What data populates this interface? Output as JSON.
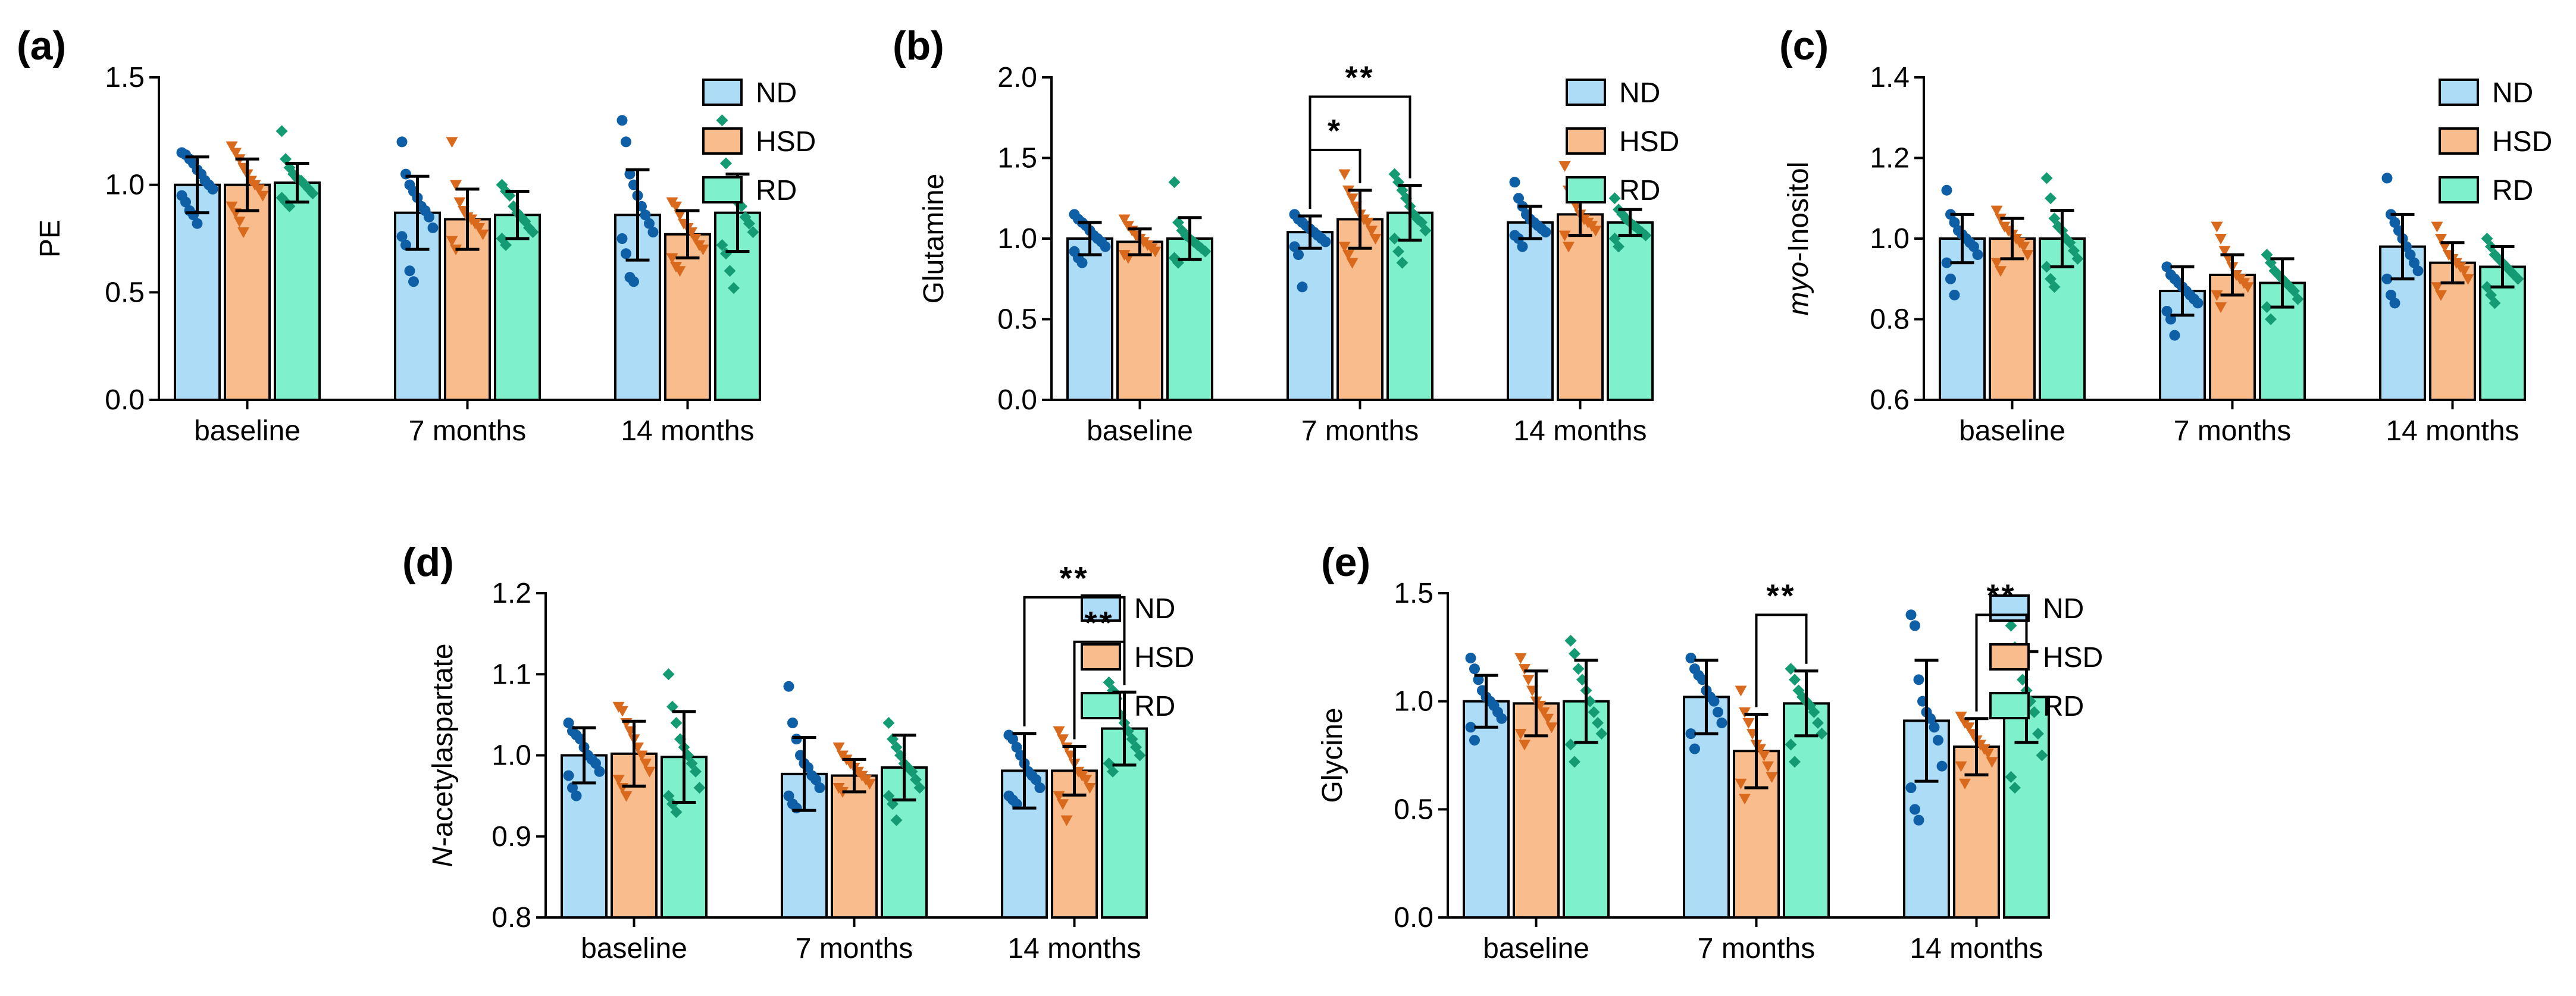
{
  "colors": {
    "ND": {
      "fill": "#ADDCF7",
      "point": "#0E5FA6"
    },
    "HSD": {
      "fill": "#F9BC8D",
      "point": "#D8691D"
    },
    "RD": {
      "fill": "#7FF0CC",
      "point": "#159B74"
    }
  },
  "chart_data": [
    {
      "type": "bar",
      "panel": "(a)",
      "ylabel": "PE",
      "ylabel_prefix": "",
      "ylabel_rest": "",
      "ylim": [
        0,
        1.5
      ],
      "yticks": [
        0.0,
        0.5,
        1.0,
        1.5
      ],
      "ytick_labels": [
        "0.0",
        "0.5",
        "1.0",
        "1.5"
      ],
      "categories": [
        "baseline",
        "7 months",
        "14 months"
      ],
      "series": [
        {
          "name": "ND",
          "marker": "circle",
          "values": [
            1.0,
            0.87,
            0.86
          ],
          "sd": [
            0.13,
            0.17,
            0.21
          ],
          "points": [
            [
              1.15,
              1.14,
              1.12,
              1.1,
              1.07,
              1.05,
              1.02,
              1.0,
              0.98,
              0.95,
              0.92,
              0.88,
              0.86,
              0.82
            ],
            [
              1.2,
              1.05,
              1.0,
              0.97,
              0.94,
              0.9,
              0.88,
              0.85,
              0.8,
              0.76,
              0.72,
              0.6,
              0.55
            ],
            [
              1.3,
              1.2,
              1.05,
              1.0,
              0.95,
              0.9,
              0.86,
              0.82,
              0.78,
              0.75,
              0.68,
              0.57,
              0.55
            ]
          ]
        },
        {
          "name": "HSD",
          "marker": "triangle-down",
          "values": [
            1.0,
            0.84,
            0.77
          ],
          "sd": [
            0.12,
            0.14,
            0.11
          ],
          "points": [
            [
              1.18,
              1.15,
              1.12,
              1.08,
              1.05,
              1.02,
              1.0,
              0.98,
              0.95,
              0.9,
              0.87,
              0.83,
              0.78
            ],
            [
              1.2,
              1.0,
              0.92,
              0.88,
              0.85,
              0.84,
              0.82,
              0.8,
              0.77,
              0.74,
              0.7
            ],
            [
              0.92,
              0.9,
              0.86,
              0.82,
              0.8,
              0.78,
              0.75,
              0.72,
              0.7,
              0.66,
              0.62,
              0.6
            ]
          ]
        },
        {
          "name": "RD",
          "marker": "diamond",
          "values": [
            1.01,
            0.86,
            0.87
          ],
          "sd": [
            0.09,
            0.11,
            0.18
          ],
          "points": [
            [
              1.25,
              1.12,
              1.08,
              1.05,
              1.03,
              1.02,
              1.0,
              0.98,
              0.96,
              0.94,
              0.92,
              0.9
            ],
            [
              1.0,
              0.97,
              0.95,
              0.9,
              0.87,
              0.85,
              0.83,
              0.8,
              0.78,
              0.75,
              0.72
            ],
            [
              1.3,
              1.1,
              1.0,
              0.95,
              0.92,
              0.9,
              0.85,
              0.82,
              0.78,
              0.72,
              0.68,
              0.6,
              0.52
            ]
          ]
        }
      ],
      "significance": []
    },
    {
      "type": "bar",
      "panel": "(b)",
      "ylabel": "Glutamine",
      "ylabel_prefix": "",
      "ylabel_rest": "",
      "ylim": [
        0,
        2.0
      ],
      "yticks": [
        0.0,
        0.5,
        1.0,
        1.5,
        2.0
      ],
      "ytick_labels": [
        "0.0",
        "0.5",
        "1.0",
        "1.5",
        "2.0"
      ],
      "categories": [
        "baseline",
        "7 months",
        "14 months"
      ],
      "series": [
        {
          "name": "ND",
          "marker": "circle",
          "values": [
            1.0,
            1.04,
            1.1
          ],
          "sd": [
            0.1,
            0.1,
            0.1
          ],
          "points": [
            [
              1.15,
              1.12,
              1.1,
              1.08,
              1.05,
              1.02,
              1.0,
              0.98,
              0.95,
              0.92,
              0.88,
              0.85
            ],
            [
              1.15,
              1.12,
              1.1,
              1.08,
              1.06,
              1.04,
              1.02,
              1.0,
              0.98,
              0.95,
              0.9,
              0.7
            ],
            [
              1.35,
              1.25,
              1.2,
              1.15,
              1.12,
              1.1,
              1.08,
              1.06,
              1.04,
              1.02,
              1.0,
              0.95
            ]
          ]
        },
        {
          "name": "HSD",
          "marker": "triangle-down",
          "values": [
            0.98,
            1.12,
            1.15
          ],
          "sd": [
            0.08,
            0.18,
            0.13
          ],
          "points": [
            [
              1.12,
              1.08,
              1.05,
              1.02,
              1.0,
              0.98,
              0.96,
              0.94,
              0.92,
              0.9,
              0.88
            ],
            [
              1.4,
              1.3,
              1.25,
              1.2,
              1.15,
              1.12,
              1.1,
              1.05,
              1.0,
              0.95,
              0.9,
              0.85
            ],
            [
              1.45,
              1.3,
              1.25,
              1.2,
              1.15,
              1.12,
              1.1,
              1.08,
              1.05,
              1.02,
              0.95
            ]
          ]
        },
        {
          "name": "RD",
          "marker": "diamond",
          "values": [
            1.0,
            1.16,
            1.1
          ],
          "sd": [
            0.13,
            0.17,
            0.08
          ],
          "points": [
            [
              1.35,
              1.1,
              1.05,
              1.02,
              1.0,
              0.98,
              0.96,
              0.94,
              0.92,
              0.88,
              0.85
            ],
            [
              1.4,
              1.35,
              1.3,
              1.25,
              1.2,
              1.15,
              1.12,
              1.1,
              1.05,
              1.0,
              0.92,
              0.85
            ],
            [
              1.25,
              1.18,
              1.15,
              1.12,
              1.1,
              1.08,
              1.06,
              1.04,
              1.02,
              1.0,
              0.95
            ]
          ]
        }
      ],
      "significance": [
        {
          "group": 1,
          "from": "ND",
          "to": "HSD",
          "label": "*",
          "level": 1.55
        },
        {
          "group": 1,
          "from": "ND",
          "to": "RD",
          "label": "**",
          "level": 1.88
        }
      ]
    },
    {
      "type": "bar",
      "panel": "(c)",
      "ylabel": "myo-Inositol",
      "ylabel_prefix": "myo",
      "ylabel_rest": "-Inositol",
      "ylim": [
        0.6,
        1.4
      ],
      "yticks": [
        0.6,
        0.8,
        1.0,
        1.2,
        1.4
      ],
      "ytick_labels": [
        "0.6",
        "0.8",
        "1.0",
        "1.2",
        "1.4"
      ],
      "categories": [
        "baseline",
        "7 months",
        "14 months"
      ],
      "series": [
        {
          "name": "ND",
          "marker": "circle",
          "values": [
            1.0,
            0.87,
            0.98
          ],
          "sd": [
            0.06,
            0.06,
            0.08
          ],
          "points": [
            [
              1.12,
              1.06,
              1.04,
              1.02,
              1.01,
              1.0,
              0.99,
              0.98,
              0.96,
              0.94,
              0.9,
              0.86
            ],
            [
              0.93,
              0.91,
              0.9,
              0.89,
              0.88,
              0.87,
              0.86,
              0.85,
              0.84,
              0.82,
              0.8,
              0.76
            ],
            [
              1.15,
              1.06,
              1.04,
              1.02,
              1.0,
              0.98,
              0.96,
              0.94,
              0.92,
              0.9,
              0.86,
              0.84
            ]
          ]
        },
        {
          "name": "HSD",
          "marker": "triangle-down",
          "values": [
            1.0,
            0.91,
            0.94
          ],
          "sd": [
            0.05,
            0.05,
            0.05
          ],
          "points": [
            [
              1.07,
              1.05,
              1.03,
              1.02,
              1.01,
              1.0,
              0.99,
              0.98,
              0.96,
              0.94,
              0.92
            ],
            [
              1.03,
              1.0,
              0.97,
              0.95,
              0.93,
              0.91,
              0.9,
              0.89,
              0.88,
              0.86,
              0.83
            ],
            [
              1.03,
              1.0,
              0.98,
              0.96,
              0.95,
              0.94,
              0.93,
              0.92,
              0.9,
              0.88,
              0.86
            ]
          ]
        },
        {
          "name": "RD",
          "marker": "diamond",
          "values": [
            1.0,
            0.89,
            0.93
          ],
          "sd": [
            0.07,
            0.06,
            0.05
          ],
          "points": [
            [
              1.15,
              1.1,
              1.05,
              1.03,
              1.02,
              1.0,
              0.99,
              0.97,
              0.95,
              0.93,
              0.9,
              0.88
            ],
            [
              0.96,
              0.94,
              0.92,
              0.91,
              0.9,
              0.89,
              0.88,
              0.87,
              0.85,
              0.83,
              0.8
            ],
            [
              1.0,
              0.98,
              0.96,
              0.95,
              0.94,
              0.93,
              0.92,
              0.91,
              0.9,
              0.88,
              0.86,
              0.84
            ]
          ]
        }
      ],
      "significance": []
    },
    {
      "type": "bar",
      "panel": "(d)",
      "ylabel": "N-acetylaspartate",
      "ylabel_prefix": "N",
      "ylabel_rest": "-acetylaspartate",
      "ylim": [
        0.8,
        1.2
      ],
      "yticks": [
        0.8,
        0.9,
        1.0,
        1.1,
        1.2
      ],
      "ytick_labels": [
        "0.8",
        "0.9",
        "1.0",
        "1.1",
        "1.2"
      ],
      "categories": [
        "baseline",
        "7 months",
        "14 months"
      ],
      "series": [
        {
          "name": "ND",
          "marker": "circle",
          "values": [
            1.0,
            0.977,
            0.981
          ],
          "sd": [
            0.034,
            0.045,
            0.046
          ],
          "points": [
            [
              1.04,
              1.03,
              1.025,
              1.02,
              1.01,
              1.0,
              0.995,
              0.99,
              0.98,
              0.975,
              0.96,
              0.95
            ],
            [
              1.085,
              1.04,
              1.02,
              1.0,
              0.99,
              0.985,
              0.975,
              0.97,
              0.96,
              0.95,
              0.94,
              0.935
            ],
            [
              1.025,
              1.02,
              1.01,
              1.0,
              0.99,
              0.98,
              0.975,
              0.97,
              0.96,
              0.95,
              0.945,
              0.94
            ]
          ]
        },
        {
          "name": "HSD",
          "marker": "triangle-down",
          "values": [
            1.002,
            0.975,
            0.981
          ],
          "sd": [
            0.04,
            0.02,
            0.03
          ],
          "points": [
            [
              1.06,
              1.055,
              1.04,
              1.03,
              1.02,
              1.01,
              1.0,
              0.99,
              0.98,
              0.97,
              0.96,
              0.95
            ],
            [
              1.01,
              1.0,
              0.995,
              0.99,
              0.985,
              0.98,
              0.975,
              0.97,
              0.965,
              0.96,
              0.955
            ],
            [
              1.03,
              1.02,
              1.01,
              1.0,
              0.99,
              0.98,
              0.975,
              0.97,
              0.96,
              0.95,
              0.94,
              0.92
            ]
          ]
        },
        {
          "name": "RD",
          "marker": "diamond",
          "values": [
            0.998,
            0.985,
            1.033
          ],
          "sd": [
            0.056,
            0.04,
            0.045
          ],
          "points": [
            [
              1.1,
              1.06,
              1.04,
              1.02,
              1.01,
              1.0,
              0.99,
              0.98,
              0.96,
              0.95,
              0.94,
              0.93
            ],
            [
              1.04,
              1.02,
              1.01,
              1.0,
              0.99,
              0.985,
              0.98,
              0.97,
              0.96,
              0.95,
              0.94,
              0.92
            ],
            [
              1.09,
              1.08,
              1.07,
              1.05,
              1.04,
              1.03,
              1.02,
              1.01,
              1.0,
              0.99,
              0.98
            ]
          ]
        }
      ],
      "significance": [
        {
          "group": 2,
          "from": "HSD",
          "to": "RD",
          "label": "**",
          "level": 1.14
        },
        {
          "group": 2,
          "from": "ND",
          "to": "RD",
          "label": "**",
          "level": 1.195
        }
      ]
    },
    {
      "type": "bar",
      "panel": "(e)",
      "ylabel": "Glycine",
      "ylabel_prefix": "",
      "ylabel_rest": "",
      "ylim": [
        0,
        1.5
      ],
      "yticks": [
        0.0,
        0.5,
        1.0,
        1.5
      ],
      "ytick_labels": [
        "0.0",
        "0.5",
        "1.0",
        "1.5"
      ],
      "categories": [
        "baseline",
        "7 months",
        "14 months"
      ],
      "series": [
        {
          "name": "ND",
          "marker": "circle",
          "values": [
            1.0,
            1.02,
            0.91
          ],
          "sd": [
            0.12,
            0.17,
            0.28
          ],
          "points": [
            [
              1.2,
              1.15,
              1.1,
              1.05,
              1.02,
              1.0,
              0.98,
              0.95,
              0.92,
              0.88,
              0.82
            ],
            [
              1.2,
              1.15,
              1.12,
              1.1,
              1.05,
              1.02,
              1.0,
              0.95,
              0.9,
              0.85,
              0.78
            ],
            [
              1.4,
              1.35,
              1.1,
              1.0,
              0.95,
              0.92,
              0.88,
              0.82,
              0.7,
              0.6,
              0.5,
              0.45
            ]
          ]
        },
        {
          "name": "HSD",
          "marker": "triangle-down",
          "values": [
            0.99,
            0.77,
            0.79
          ],
          "sd": [
            0.15,
            0.17,
            0.13
          ],
          "points": [
            [
              1.2,
              1.15,
              1.1,
              1.05,
              1.0,
              0.98,
              0.95,
              0.92,
              0.88,
              0.85,
              0.8
            ],
            [
              1.05,
              0.95,
              0.9,
              0.85,
              0.8,
              0.78,
              0.75,
              0.7,
              0.65,
              0.62,
              0.55
            ],
            [
              0.93,
              0.9,
              0.88,
              0.85,
              0.82,
              0.8,
              0.78,
              0.76,
              0.72,
              0.7,
              0.62
            ]
          ]
        },
        {
          "name": "RD",
          "marker": "diamond",
          "values": [
            1.0,
            0.99,
            1.02
          ],
          "sd": [
            0.19,
            0.15,
            0.21
          ],
          "points": [
            [
              1.28,
              1.22,
              1.15,
              1.1,
              1.05,
              1.0,
              0.95,
              0.9,
              0.85,
              0.8,
              0.72
            ],
            [
              1.15,
              1.1,
              1.05,
              1.02,
              1.0,
              0.98,
              0.95,
              0.9,
              0.85,
              0.8,
              0.72
            ],
            [
              1.35,
              1.25,
              1.2,
              1.1,
              1.05,
              1.0,
              0.95,
              0.85,
              0.75,
              0.65,
              0.6
            ]
          ]
        }
      ],
      "significance": [
        {
          "group": 1,
          "from": "HSD",
          "to": "RD",
          "label": "**",
          "level": 1.4
        },
        {
          "group": 2,
          "from": "HSD",
          "to": "RD",
          "label": "**",
          "level": 1.4
        }
      ]
    }
  ]
}
